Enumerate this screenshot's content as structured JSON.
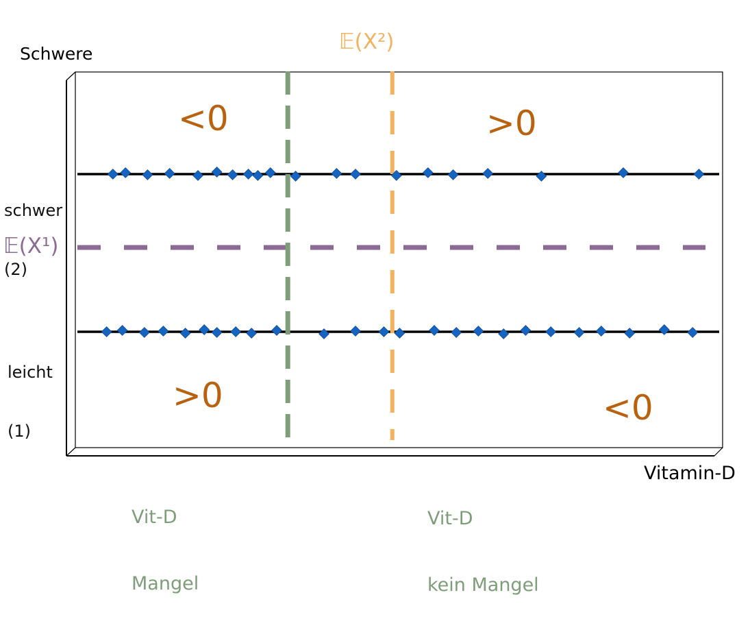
{
  "title": "",
  "axis": {
    "y_title": "Schwere",
    "x_title": "Vitamin-D",
    "y_levels": [
      {
        "line1": "schwer",
        "line2": "(2)"
      },
      {
        "line1": "leicht",
        "line2": "(1)"
      }
    ]
  },
  "expectations": {
    "x1": "𝔼(X¹)",
    "x2": "𝔼(X²)"
  },
  "quadrants": {
    "top_left": "<0",
    "top_right": ">0",
    "bottom_left": ">0",
    "bottom_right": "<0"
  },
  "x_regions": {
    "mangel": {
      "line1": "Vit-D",
      "line2": "Mangel"
    },
    "kein_mangel": {
      "line1": "Vit-D",
      "line2": "kein Mangel"
    }
  },
  "colors": {
    "point": "#1565c0",
    "mean_x1": "#8b6a93",
    "mean_x2": "#f2b25f",
    "threshold": "#7e9e7a",
    "sign": "#b8620f",
    "axis": "#000000"
  },
  "chart_data": {
    "type": "scatter",
    "xlabel": "Vitamin-D",
    "ylabel": "Schwere",
    "y_categories": [
      "leicht (1)",
      "schwer (2)"
    ],
    "series": [
      {
        "y": 2,
        "x": [
          0.4,
          0.6,
          0.95,
          1.3,
          1.75,
          2.05,
          2.3,
          2.55,
          2.7,
          2.9,
          3.3,
          3.95,
          4.25,
          4.9,
          5.4,
          5.8,
          6.35,
          7.2,
          8.5,
          9.7
        ]
      },
      {
        "y": 1,
        "x": [
          0.3,
          0.55,
          0.9,
          1.2,
          1.55,
          1.85,
          2.05,
          2.35,
          2.6,
          3.0,
          3.75,
          4.25,
          4.7,
          4.95,
          5.5,
          5.85,
          6.2,
          6.6,
          6.95,
          7.35,
          7.8,
          8.15,
          8.6,
          9.15,
          9.6
        ]
      }
    ],
    "means": {
      "x": 4.9,
      "y": 1.5
    },
    "threshold_x": 3.6
  }
}
